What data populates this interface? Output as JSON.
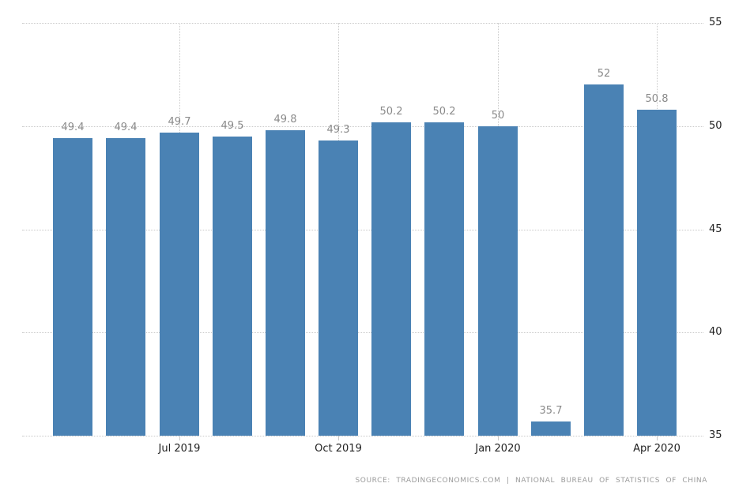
{
  "chart_data": {
    "type": "bar",
    "title": "",
    "values": [
      49.4,
      49.4,
      49.7,
      49.5,
      49.8,
      49.3,
      50.2,
      50.2,
      50,
      35.7,
      52,
      50.8
    ],
    "value_labels": [
      "49.4",
      "49.4",
      "49.7",
      "49.5",
      "49.8",
      "49.3",
      "50.2",
      "50.2",
      "50",
      "35.7",
      "52",
      "50.8"
    ],
    "x_ticks": [
      {
        "label": "Jul 2019",
        "bar_index": 2
      },
      {
        "label": "Oct 2019",
        "bar_index": 5
      },
      {
        "label": "Jan 2020",
        "bar_index": 8
      },
      {
        "label": "Apr 2020",
        "bar_index": 11
      }
    ],
    "y_ticks": [
      35,
      40,
      45,
      50,
      55
    ],
    "ylim": [
      35,
      55
    ],
    "grid": "dotted",
    "legend": "none",
    "colors": {
      "bar": "#4a82b4",
      "value_label": "#8a8a8a",
      "axis_label": "#222222",
      "grid": "#c9c9c9",
      "source_text": "#9a9a9a"
    },
    "source": "SOURCE: TRADINGECONOMICS.COM | NATIONAL BUREAU OF STATISTICS OF CHINA"
  }
}
